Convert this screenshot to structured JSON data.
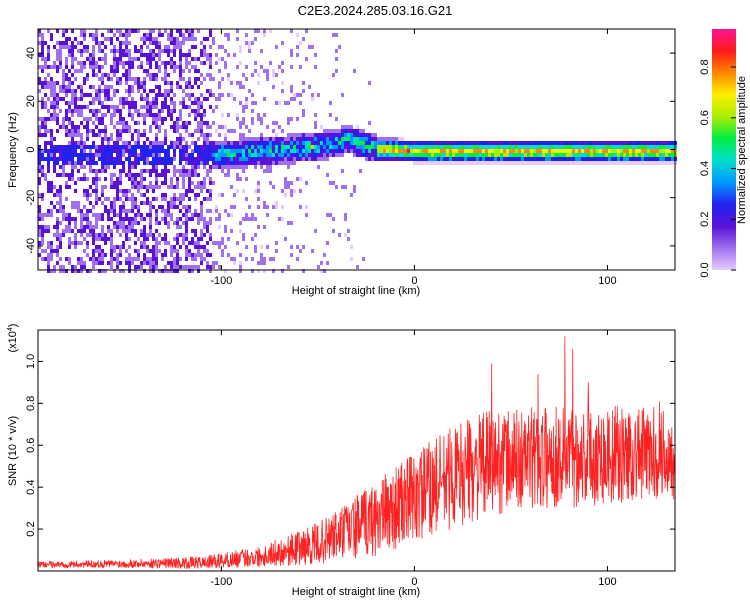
{
  "title": "C2E3.2024.285.03.16.G21",
  "chart_data": [
    {
      "type": "heatmap",
      "xlabel": "Height of straight line (km)",
      "ylabel": "Frequency (Hz)",
      "xlim": [
        -195,
        135
      ],
      "ylim": [
        -50,
        50
      ],
      "xticks": [
        -100,
        0,
        100
      ],
      "xtick_labels": [
        "-100",
        "0",
        "100"
      ],
      "yticks": [
        -40,
        -20,
        0,
        20,
        40
      ],
      "ytick_labels": [
        "-40",
        "-20",
        "0",
        "20",
        "40"
      ],
      "colorbar": {
        "label": "Normalized spectral amplitude",
        "range": [
          0,
          0.95
        ],
        "ticks": [
          0,
          0.2,
          0.4,
          0.6,
          0.8
        ],
        "tick_labels": [
          "0.0",
          "0.2",
          "0.4",
          "0.6",
          "0.8"
        ],
        "colors": [
          "#e6ccff",
          "#a070f0",
          "#5a12d8",
          "#2222ee",
          "#0099ff",
          "#00ddcc",
          "#00ee44",
          "#aaee00",
          "#ffee00",
          "#ff8800",
          "#ff1a1a",
          "#ff1493"
        ]
      },
      "features": {
        "noise_region_x": [
          -195,
          -105
        ],
        "noise_amplitude": [
          0.05,
          0.2
        ],
        "transition_region_x": [
          -105,
          -20
        ],
        "band_center_hz": [
          {
            "x": -110,
            "y": -2
          },
          {
            "x": -80,
            "y": 0
          },
          {
            "x": -50,
            "y": 2
          },
          {
            "x": -35,
            "y": 5
          },
          {
            "x": -20,
            "y": 1
          },
          {
            "x": 0,
            "y": 0
          },
          {
            "x": 50,
            "y": 0
          },
          {
            "x": 100,
            "y": 0
          },
          {
            "x": 135,
            "y": 0
          }
        ],
        "band_halfwidth_hz": 3,
        "band_peak_amplitude": 0.85
      }
    },
    {
      "type": "line",
      "color": "#ff2020",
      "xlabel": "Height of straight line (km)",
      "ylabel": "SNR (10 * v/v)",
      "y_multiplier_label": "(x10",
      "y_multiplier_exp": "4",
      "y_multiplier_close": ")",
      "xlim": [
        -195,
        135
      ],
      "ylim": [
        0,
        1.15
      ],
      "xticks": [
        -100,
        0,
        100
      ],
      "xtick_labels": [
        "-100",
        "0",
        "100"
      ],
      "yticks": [
        0.2,
        0.4,
        0.6,
        0.8,
        1.0
      ],
      "ytick_labels": [
        "0.2",
        "0.4",
        "0.6",
        "0.8",
        "1.0"
      ],
      "envelope": [
        {
          "x": -195,
          "mean": 0.03,
          "spread": 0.015
        },
        {
          "x": -150,
          "mean": 0.035,
          "spread": 0.02
        },
        {
          "x": -110,
          "mean": 0.04,
          "spread": 0.03
        },
        {
          "x": -80,
          "mean": 0.07,
          "spread": 0.05
        },
        {
          "x": -50,
          "mean": 0.13,
          "spread": 0.1
        },
        {
          "x": -20,
          "mean": 0.25,
          "spread": 0.18
        },
        {
          "x": 0,
          "mean": 0.35,
          "spread": 0.22
        },
        {
          "x": 20,
          "mean": 0.45,
          "spread": 0.25
        },
        {
          "x": 40,
          "mean": 0.52,
          "spread": 0.25
        },
        {
          "x": 80,
          "mean": 0.55,
          "spread": 0.25
        },
        {
          "x": 135,
          "mean": 0.56,
          "spread": 0.22
        }
      ],
      "peaks": [
        {
          "x": 40,
          "y": 0.99
        },
        {
          "x": 78,
          "y": 1.12
        },
        {
          "x": 82,
          "y": 1.06
        },
        {
          "x": 90,
          "y": 0.9
        },
        {
          "x": 64,
          "y": 0.94
        },
        {
          "x": 127,
          "y": 0.81
        }
      ]
    }
  ]
}
